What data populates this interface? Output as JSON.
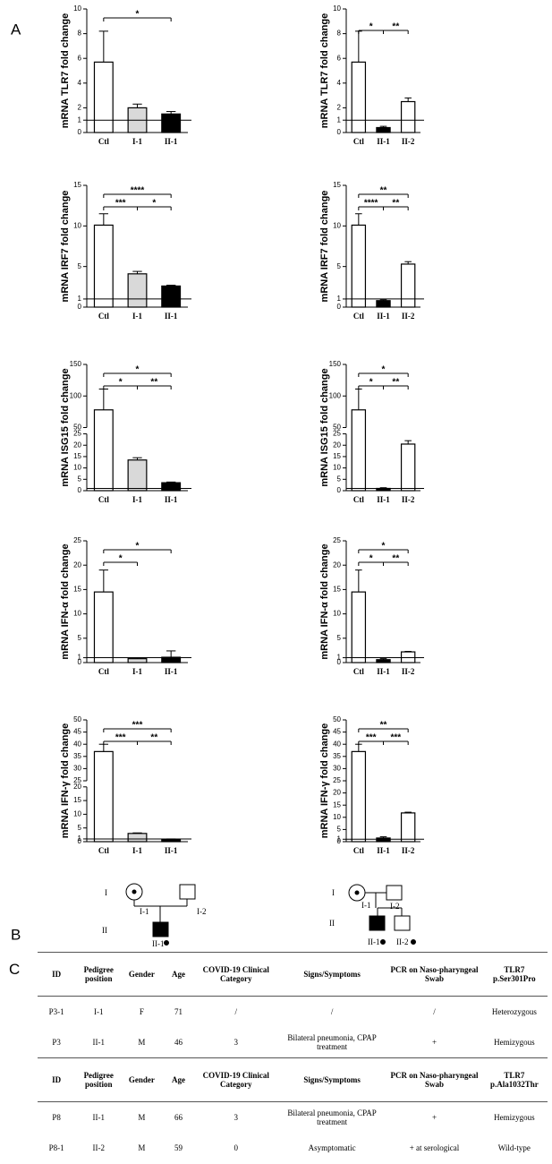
{
  "panels": [
    "A",
    "B",
    "C"
  ],
  "chart_data": [
    {
      "type": "bar",
      "ylabel": "mRNA TLR7 fold change",
      "categories": [
        "Ctl",
        "I-1",
        "II-1"
      ],
      "values": [
        5.7,
        2.0,
        1.5
      ],
      "errors": [
        2.5,
        0.3,
        0.2
      ],
      "colors": [
        "#ffffff",
        "#d9d9d9",
        "#000000"
      ],
      "ylim": [
        0,
        10
      ],
      "yticks": [
        0,
        1,
        2,
        4,
        6,
        8,
        10
      ],
      "reference_line": 1,
      "significance": [
        {
          "label": "*",
          "from": "Ctl",
          "to": "II-1"
        }
      ]
    },
    {
      "type": "bar",
      "ylabel": "mRNA TLR7 fold change",
      "categories": [
        "Ctl",
        "II-1",
        "II-2"
      ],
      "values": [
        5.7,
        0.4,
        2.5
      ],
      "errors": [
        2.5,
        0.1,
        0.3
      ],
      "colors": [
        "#ffffff",
        "#000000",
        "#ffffff"
      ],
      "ylim": [
        0,
        10
      ],
      "yticks": [
        0,
        1,
        2,
        4,
        6,
        8,
        10
      ],
      "reference_line": 1,
      "significance": [
        {
          "label": "*",
          "from": "Ctl",
          "to": "II-1"
        },
        {
          "label": "**",
          "from": "II-1",
          "to": "II-2"
        }
      ]
    },
    {
      "type": "bar",
      "ylabel": "mRNA IRF7 fold change",
      "categories": [
        "Ctl",
        "I-1",
        "II-1"
      ],
      "values": [
        10.1,
        4.1,
        2.6
      ],
      "errors": [
        1.4,
        0.3,
        0.1
      ],
      "colors": [
        "#ffffff",
        "#d9d9d9",
        "#000000"
      ],
      "ylim": [
        0,
        15
      ],
      "yticks": [
        0,
        1,
        5,
        10,
        15
      ],
      "reference_line": 1,
      "significance": [
        {
          "label": "****",
          "from": "Ctl",
          "to": "II-1"
        },
        {
          "label": "***",
          "from": "Ctl",
          "to": "I-1"
        },
        {
          "label": "*",
          "from": "I-1",
          "to": "II-1"
        }
      ]
    },
    {
      "type": "bar",
      "ylabel": "mRNA IRF7 fold change",
      "categories": [
        "Ctl",
        "II-1",
        "II-2"
      ],
      "values": [
        10.1,
        0.8,
        5.3
      ],
      "errors": [
        1.4,
        0.1,
        0.3
      ],
      "colors": [
        "#ffffff",
        "#000000",
        "#ffffff"
      ],
      "ylim": [
        0,
        15
      ],
      "yticks": [
        0,
        1,
        5,
        10,
        15
      ],
      "reference_line": 1,
      "significance": [
        {
          "label": "**",
          "from": "Ctl",
          "to": "II-2"
        },
        {
          "label": "****",
          "from": "Ctl",
          "to": "II-1"
        },
        {
          "label": "**",
          "from": "II-1",
          "to": "II-2"
        }
      ]
    },
    {
      "type": "bar",
      "ylabel": "mRNA ISG15 fold change",
      "categories": [
        "Ctl",
        "I-1",
        "II-1"
      ],
      "values": [
        78,
        13.5,
        3.5
      ],
      "errors": [
        33,
        1,
        0.3
      ],
      "colors": [
        "#ffffff",
        "#d9d9d9",
        "#000000"
      ],
      "ylim": [
        0,
        150
      ],
      "ybreak": [
        25,
        50
      ],
      "yticks": [
        0,
        5,
        10,
        15,
        20,
        25,
        50,
        100,
        150
      ],
      "reference_line": 1,
      "significance": [
        {
          "label": "*",
          "from": "Ctl",
          "to": "II-1"
        },
        {
          "label": "*",
          "from": "Ctl",
          "to": "I-1"
        },
        {
          "label": "**",
          "from": "I-1",
          "to": "II-1"
        }
      ]
    },
    {
      "type": "bar",
      "ylabel": "mRNA ISG15 fold change",
      "categories": [
        "Ctl",
        "II-1",
        "II-2"
      ],
      "values": [
        78,
        1,
        20.5
      ],
      "errors": [
        33,
        0.3,
        1.5
      ],
      "colors": [
        "#ffffff",
        "#000000",
        "#ffffff"
      ],
      "ylim": [
        0,
        150
      ],
      "ybreak": [
        25,
        50
      ],
      "yticks": [
        0,
        5,
        10,
        15,
        20,
        25,
        50,
        100,
        150
      ],
      "reference_line": 1,
      "significance": [
        {
          "label": "*",
          "from": "Ctl",
          "to": "II-2"
        },
        {
          "label": "*",
          "from": "Ctl",
          "to": "II-1"
        },
        {
          "label": "**",
          "from": "II-1",
          "to": "II-2"
        }
      ]
    },
    {
      "type": "bar",
      "ylabel": "mRNA IFN-α fold change",
      "categories": [
        "Ctl",
        "I-1",
        "II-1"
      ],
      "values": [
        14.5,
        0.8,
        1.1
      ],
      "errors": [
        4.5,
        0.2,
        1.3
      ],
      "colors": [
        "#ffffff",
        "#d9d9d9",
        "#000000"
      ],
      "ylim": [
        0,
        25
      ],
      "yticks": [
        0,
        1,
        5,
        10,
        15,
        20,
        25
      ],
      "reference_line": 1,
      "significance": [
        {
          "label": "*",
          "from": "Ctl",
          "to": "II-1"
        },
        {
          "label": "*",
          "from": "Ctl",
          "to": "I-1"
        }
      ]
    },
    {
      "type": "bar",
      "ylabel": "mRNA IFN-α fold change",
      "categories": [
        "Ctl",
        "II-1",
        "II-2"
      ],
      "values": [
        14.5,
        0.6,
        2.2
      ],
      "errors": [
        4.5,
        0.2,
        0.1
      ],
      "colors": [
        "#ffffff",
        "#000000",
        "#ffffff"
      ],
      "ylim": [
        0,
        25
      ],
      "yticks": [
        0,
        1,
        5,
        10,
        15,
        20,
        25
      ],
      "reference_line": 1,
      "significance": [
        {
          "label": "*",
          "from": "Ctl",
          "to": "II-2"
        },
        {
          "label": "*",
          "from": "Ctl",
          "to": "II-1"
        },
        {
          "label": "**",
          "from": "II-1",
          "to": "II-2"
        }
      ]
    },
    {
      "type": "bar",
      "ylabel": "mRNA IFN-γ fold change",
      "categories": [
        "Ctl",
        "I-1",
        "II-1"
      ],
      "values": [
        37,
        3,
        0.7
      ],
      "errors": [
        3,
        0.2,
        0.3
      ],
      "colors": [
        "#ffffff",
        "#d9d9d9",
        "#000000"
      ],
      "ylim": [
        0,
        50
      ],
      "ybreak": [
        20,
        25
      ],
      "yticks": [
        0,
        1,
        5,
        10,
        15,
        20,
        25,
        30,
        35,
        40,
        45,
        50
      ],
      "reference_line": 1,
      "significance": [
        {
          "label": "***",
          "from": "Ctl",
          "to": "II-1"
        },
        {
          "label": "***",
          "from": "Ctl",
          "to": "I-1"
        },
        {
          "label": "**",
          "from": "I-1",
          "to": "II-1"
        }
      ]
    },
    {
      "type": "bar",
      "ylabel": "mRNA IFN-γ fold change",
      "categories": [
        "Ctl",
        "II-1",
        "II-2"
      ],
      "values": [
        37,
        1.5,
        11.8
      ],
      "errors": [
        3,
        0.5,
        0.3
      ],
      "colors": [
        "#ffffff",
        "#000000",
        "#ffffff"
      ],
      "ylim": [
        0,
        50
      ],
      "yticks": [
        0,
        1,
        5,
        10,
        15,
        20,
        25,
        30,
        35,
        40,
        45,
        50
      ],
      "reference_line": 1,
      "significance": [
        {
          "label": "**",
          "from": "Ctl",
          "to": "II-2"
        },
        {
          "label": "***",
          "from": "Ctl",
          "to": "II-1"
        },
        {
          "label": "***",
          "from": "II-1",
          "to": "II-2"
        }
      ]
    }
  ],
  "pedigrees": [
    {
      "generations": [
        "I",
        "II"
      ],
      "members": [
        "I-1",
        "I-2",
        "II-1"
      ]
    },
    {
      "generations": [
        "I",
        "II"
      ],
      "members": [
        "I-1",
        "I-2",
        "II-1",
        "II-2"
      ]
    }
  ],
  "table": {
    "sections": [
      {
        "header": [
          "ID",
          "Pedigree position",
          "Gender",
          "Age",
          "COVID-19 Clinical Category",
          "Signs/Symptoms",
          "PCR on Naso-pharyngeal Swab",
          "TLR7 p.Ser301Pro"
        ],
        "rows": [
          [
            "P3-1",
            "I-1",
            "F",
            71,
            "/",
            "/",
            "/",
            "Heterozygous"
          ],
          [
            "P3",
            "II-1",
            "M",
            46,
            3,
            "Bilateral pneumonia, CPAP treatment",
            "+",
            "Hemizygous"
          ]
        ]
      },
      {
        "header": [
          "ID",
          "Pedigree position",
          "Gender",
          "Age",
          "COVID-19 Clinical Category",
          "Signs/Symptoms",
          "PCR on Naso-pharyngeal Swab",
          "TLR7 p.Ala1032Thr"
        ],
        "rows": [
          [
            "P8",
            "II-1",
            "M",
            66,
            3,
            "Bilateral pneumonia, CPAP treatment",
            "+",
            "Hemizygous"
          ],
          [
            "P8-1",
            "II-2",
            "M",
            59,
            0,
            "Asymptomatic",
            "+ at serological",
            "Wild-type"
          ]
        ]
      }
    ]
  }
}
